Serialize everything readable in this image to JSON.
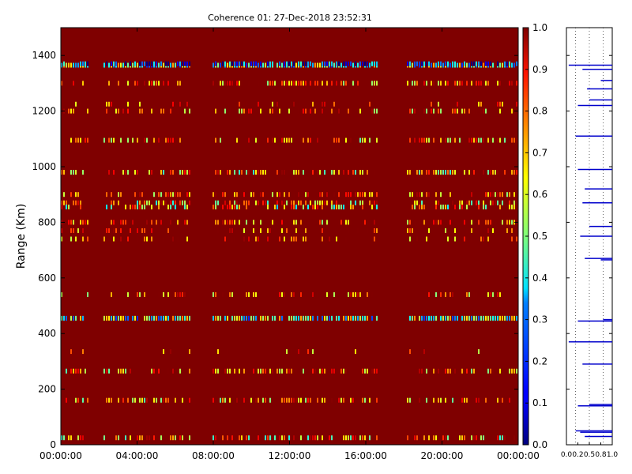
{
  "chart_data": [
    {
      "type": "heatmap",
      "title": "Coherence 01: 27-Dec-2018 23:52:31",
      "xlabel": "",
      "ylabel": "Range (Km)",
      "x_ticks": [
        "00:00:00",
        "04:00:00",
        "08:00:00",
        "12:00:00",
        "16:00:00",
        "20:00:00",
        "00:00:00"
      ],
      "x_range_hours": [
        0,
        24
      ],
      "y_ticks": [
        0,
        200,
        400,
        600,
        800,
        1000,
        1200,
        1400
      ],
      "ylim": [
        0,
        1500
      ],
      "background_value": 1.0,
      "colormap": "jet",
      "colorbar": {
        "ticks": [
          "0.0",
          "0.1",
          "0.2",
          "0.3",
          "0.4",
          "0.5",
          "0.6",
          "0.7",
          "0.8",
          "0.9",
          "1.0"
        ],
        "range": [
          0,
          1
        ]
      },
      "bands": [
        {
          "range_km": 1365,
          "value": 0.45,
          "density": 0.9
        },
        {
          "range_km": 1370,
          "value": 0.15,
          "density": 0.6
        },
        {
          "range_km": 1300,
          "value": 0.8,
          "density": 0.6
        },
        {
          "range_km": 1225,
          "value": 0.88,
          "density": 0.25
        },
        {
          "range_km": 1200,
          "value": 0.8,
          "density": 0.45
        },
        {
          "range_km": 1095,
          "value": 0.75,
          "density": 0.5
        },
        {
          "range_km": 980,
          "value": 0.72,
          "density": 0.6
        },
        {
          "range_km": 900,
          "value": 0.8,
          "density": 0.55
        },
        {
          "range_km": 870,
          "value": 0.7,
          "density": 0.6
        },
        {
          "range_km": 855,
          "value": 0.6,
          "density": 0.5
        },
        {
          "range_km": 800,
          "value": 0.8,
          "density": 0.55
        },
        {
          "range_km": 770,
          "value": 0.85,
          "density": 0.35
        },
        {
          "range_km": 740,
          "value": 0.85,
          "density": 0.3
        },
        {
          "range_km": 540,
          "value": 0.8,
          "density": 0.45
        },
        {
          "range_km": 455,
          "value": 0.45,
          "density": 0.85
        },
        {
          "range_km": 335,
          "value": 0.85,
          "density": 0.1
        },
        {
          "range_km": 265,
          "value": 0.75,
          "density": 0.5
        },
        {
          "range_km": 160,
          "value": 0.75,
          "density": 0.5
        },
        {
          "range_km": 25,
          "value": 0.7,
          "density": 0.55
        }
      ],
      "gaps_hours": [
        [
          1.5,
          2.3
        ],
        [
          6.8,
          8.0
        ],
        [
          16.7,
          18.2
        ]
      ]
    },
    {
      "type": "line",
      "title": "",
      "xlabel": "",
      "ylabel": "",
      "x_ticks": [
        "0.0",
        "0.2",
        "0.5",
        "0.8",
        "1.0"
      ],
      "xlim": [
        0,
        1
      ],
      "ylim": [
        0,
        1500
      ],
      "series": [
        {
          "color": "#0000cc",
          "x": [
            0.05,
            0.35,
            0.75,
            0.45,
            0.5,
            0.25,
            0.2,
            0.25,
            0.4,
            0.35,
            0.5,
            0.3,
            0.4,
            0.75,
            0.8,
            0.25,
            0.05,
            0.35,
            0.5,
            0.25,
            0.2,
            0.3,
            0.4
          ],
          "y": [
            1365,
            1350,
            1310,
            1280,
            1240,
            1220,
            1110,
            990,
            920,
            870,
            785,
            750,
            670,
            665,
            450,
            445,
            370,
            290,
            145,
            140,
            50,
            45,
            30
          ]
        }
      ]
    }
  ]
}
